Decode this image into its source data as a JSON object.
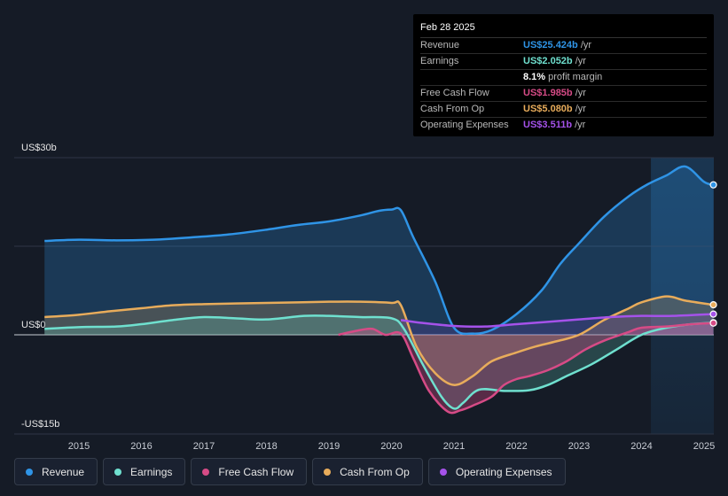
{
  "colors": {
    "revenue": "#2f94e6",
    "earnings": "#6fe0cf",
    "fcf": "#d64b86",
    "cfo": "#e8ac5b",
    "opex": "#a552ea"
  },
  "tooltip": {
    "date": "Feb 28 2025",
    "rows": [
      {
        "label": "Revenue",
        "value": "US$25.424b",
        "unit": " /yr",
        "color": "#2f94e6"
      },
      {
        "label": "Earnings",
        "value": "US$2.052b",
        "unit": " /yr",
        "color": "#6fe0cf"
      },
      {
        "label": "",
        "value": "8.1%",
        "unit": " profit margin",
        "color": "#ffffff"
      },
      {
        "label": "Free Cash Flow",
        "value": "US$1.985b",
        "unit": " /yr",
        "color": "#d64b86"
      },
      {
        "label": "Cash From Op",
        "value": "US$5.080b",
        "unit": " /yr",
        "color": "#e8ac5b"
      },
      {
        "label": "Operating Expenses",
        "value": "US$3.511b",
        "unit": " /yr",
        "color": "#a552ea"
      }
    ]
  },
  "legend": [
    {
      "label": "Revenue",
      "color": "#2f94e6"
    },
    {
      "label": "Earnings",
      "color": "#6fe0cf"
    },
    {
      "label": "Free Cash Flow",
      "color": "#d64b86"
    },
    {
      "label": "Cash From Op",
      "color": "#e8ac5b"
    },
    {
      "label": "Operating Expenses",
      "color": "#a552ea"
    }
  ],
  "chart_data": {
    "type": "area",
    "title": "",
    "xlabel": "",
    "ylabel": "",
    "ylim": [
      -15,
      30
    ],
    "y_tick_labels": [
      {
        "value": 30,
        "label": "US$30b"
      },
      {
        "value": 0,
        "label": "US$0"
      },
      {
        "value": -15,
        "label": "-US$15b"
      }
    ],
    "xlim": [
      2014.55,
      2025.15
    ],
    "x_ticks": [
      2015,
      2016,
      2017,
      2018,
      2019,
      2020,
      2021,
      2022,
      2023,
      2024,
      2025
    ],
    "highlight_from": 2024.15,
    "series": [
      {
        "name": "Revenue",
        "key": "revenue",
        "x": [
          2014.45,
          2015.0,
          2015.6,
          2016.2,
          2016.8,
          2017.4,
          2018.0,
          2018.5,
          2019.0,
          2019.5,
          2019.8,
          2020.0,
          2020.15,
          2020.35,
          2020.7,
          2021.0,
          2021.3,
          2021.6,
          2022.0,
          2022.4,
          2022.7,
          2023.0,
          2023.4,
          2023.8,
          2024.1,
          2024.4,
          2024.7,
          2025.0,
          2025.15
        ],
        "y": [
          15.9,
          16.1,
          16.0,
          16.1,
          16.5,
          17.0,
          17.8,
          18.6,
          19.2,
          20.2,
          21.0,
          21.2,
          21.1,
          16.5,
          9.0,
          1.2,
          0.2,
          0.8,
          3.5,
          7.5,
          12.0,
          15.5,
          20.0,
          23.5,
          25.5,
          27.0,
          28.5,
          25.9,
          25.4
        ]
      },
      {
        "name": "Earnings",
        "key": "earnings",
        "x": [
          2014.45,
          2015.0,
          2015.6,
          2016.0,
          2016.5,
          2017.0,
          2017.5,
          2018.0,
          2018.6,
          2019.0,
          2019.5,
          2020.0,
          2020.2,
          2020.5,
          2020.8,
          2021.0,
          2021.15,
          2021.4,
          2021.8,
          2022.2,
          2022.5,
          2022.8,
          2023.2,
          2023.6,
          2024.0,
          2024.4,
          2024.8,
          2025.15
        ],
        "y": [
          1.0,
          1.3,
          1.4,
          1.8,
          2.5,
          3.0,
          2.8,
          2.6,
          3.2,
          3.2,
          3.0,
          2.8,
          1.0,
          -5.0,
          -10.5,
          -12.5,
          -11.5,
          -9.3,
          -9.5,
          -9.4,
          -8.5,
          -7.0,
          -5.0,
          -2.5,
          0.0,
          1.2,
          1.8,
          2.05
        ]
      },
      {
        "name": "Free Cash Flow",
        "key": "fcf",
        "x": [
          2019.15,
          2019.5,
          2019.7,
          2019.9,
          2020.15,
          2020.35,
          2020.6,
          2020.9,
          2021.1,
          2021.3,
          2021.6,
          2021.8,
          2022.0,
          2022.2,
          2022.5,
          2022.8,
          2023.1,
          2023.4,
          2023.8,
          2024.0,
          2024.4,
          2024.8,
          2025.15
        ],
        "y": [
          0.0,
          0.8,
          1.0,
          0.0,
          0.2,
          -4.0,
          -9.5,
          -13.0,
          -12.8,
          -12.0,
          -10.5,
          -8.5,
          -7.5,
          -7.0,
          -6.0,
          -4.5,
          -2.5,
          -1.0,
          0.5,
          1.2,
          1.4,
          1.8,
          1.99
        ]
      },
      {
        "name": "Cash From Op",
        "key": "cfo",
        "x": [
          2014.45,
          2015.0,
          2015.5,
          2016.0,
          2016.5,
          2017.0,
          2017.5,
          2018.0,
          2018.5,
          2019.0,
          2019.5,
          2020.0,
          2020.15,
          2020.4,
          2020.7,
          2021.0,
          2021.3,
          2021.6,
          2022.0,
          2022.3,
          2022.6,
          2023.0,
          2023.4,
          2023.8,
          2024.0,
          2024.4,
          2024.7,
          2025.15
        ],
        "y": [
          3.0,
          3.4,
          4.0,
          4.5,
          5.0,
          5.2,
          5.3,
          5.4,
          5.5,
          5.6,
          5.6,
          5.4,
          5.0,
          -2.0,
          -6.5,
          -8.5,
          -7.0,
          -4.5,
          -3.0,
          -2.0,
          -1.2,
          0.0,
          2.5,
          4.5,
          5.5,
          6.5,
          5.8,
          5.08
        ]
      },
      {
        "name": "Operating Expenses",
        "key": "opex",
        "x": [
          2020.15,
          2020.5,
          2021.0,
          2021.5,
          2022.0,
          2022.5,
          2023.0,
          2023.5,
          2024.0,
          2024.5,
          2025.15
        ],
        "y": [
          2.5,
          2.0,
          1.5,
          1.4,
          1.8,
          2.2,
          2.6,
          3.0,
          3.2,
          3.2,
          3.51
        ]
      }
    ]
  }
}
